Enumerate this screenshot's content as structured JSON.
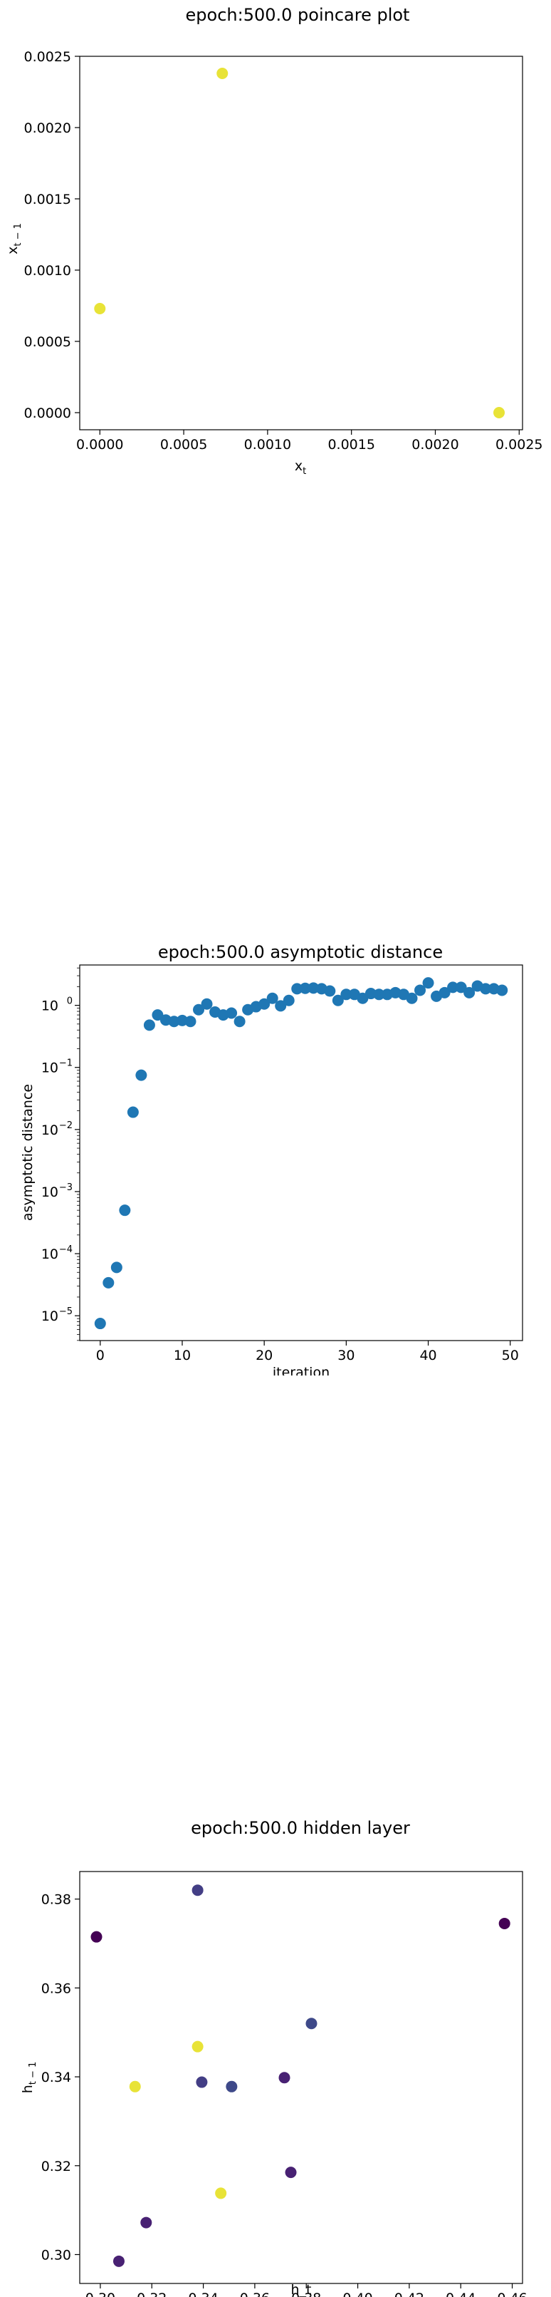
{
  "chart_data": [
    {
      "type": "scatter",
      "title": "epoch:500.0 poincare plot",
      "xlabel_main": "x",
      "xlabel_sub": "t",
      "ylabel_main": "x",
      "ylabel_sub": "t − 1",
      "xlim": [
        -0.00012,
        0.00252
      ],
      "ylim": [
        -0.00012,
        0.0025
      ],
      "xticks": [
        0,
        0.0005,
        0.001,
        0.0015,
        0.002,
        0.0025
      ],
      "xtick_labels": [
        "0.0000",
        "0.0005",
        "0.0010",
        "0.0015",
        "0.0020",
        "0.0025"
      ],
      "yticks": [
        0,
        0.0005,
        0.001,
        0.0015,
        0.002,
        0.0025
      ],
      "ytick_labels": [
        "0.0000",
        "0.0005",
        "0.0010",
        "0.0015",
        "0.0020",
        "0.0025"
      ],
      "marker_color": "#e8e337",
      "points": [
        {
          "x": 0.0,
          "y": 0.00073
        },
        {
          "x": 0.00073,
          "y": 0.00238
        },
        {
          "x": 0.00238,
          "y": 0.0
        }
      ]
    },
    {
      "type": "scatter",
      "title": "epoch:500.0 asymptotic distance",
      "xlabel": "iteration",
      "ylabel": "asymptotic distance",
      "yscale": "log",
      "xlim": [
        -2.5,
        51.5
      ],
      "ylim_log10": [
        -5.4,
        0.65
      ],
      "xticks": [
        0,
        10,
        20,
        30,
        40,
        50
      ],
      "xtick_labels": [
        "0",
        "10",
        "20",
        "30",
        "40",
        "50"
      ],
      "yticks_log10": [
        0,
        -1,
        -2,
        -3,
        -4,
        -5
      ],
      "ytick_mantissa": "10",
      "ytick_exponents": [
        "0",
        "−1",
        "−2",
        "−3",
        "−4",
        "−5"
      ],
      "marker_color": "#1f77b4",
      "x": [
        0,
        1,
        2,
        3,
        4,
        5,
        6,
        7,
        8,
        9,
        10,
        11,
        12,
        13,
        14,
        15,
        16,
        17,
        18,
        19,
        20,
        21,
        22,
        23,
        24,
        25,
        26,
        27,
        28,
        29,
        30,
        31,
        32,
        33,
        34,
        35,
        36,
        37,
        38,
        39,
        40,
        41,
        42,
        43,
        44,
        45,
        46,
        47,
        48,
        49
      ],
      "y": [
        7.5e-06,
        3.4e-05,
        6e-05,
        0.0005,
        0.019,
        0.075,
        0.48,
        0.7,
        0.58,
        0.55,
        0.57,
        0.55,
        0.85,
        1.05,
        0.78,
        0.7,
        0.75,
        0.55,
        0.85,
        0.95,
        1.05,
        1.3,
        0.98,
        1.2,
        1.85,
        1.88,
        1.9,
        1.85,
        1.7,
        1.2,
        1.5,
        1.5,
        1.3,
        1.55,
        1.5,
        1.5,
        1.6,
        1.5,
        1.3,
        1.75,
        2.3,
        1.4,
        1.6,
        1.95,
        1.95,
        1.6,
        2.05,
        1.85,
        1.85,
        1.75
      ]
    },
    {
      "type": "scatter",
      "title": "epoch:500.0 hidden layer",
      "xlabel": "h_t",
      "ylabel_main": "h",
      "ylabel_sub": "t − 1",
      "xlim": [
        0.292,
        0.464
      ],
      "ylim": [
        0.2935,
        0.3862
      ],
      "xticks": [
        0.3,
        0.32,
        0.34,
        0.36,
        0.38,
        0.4,
        0.42,
        0.44,
        0.46
      ],
      "xtick_labels": [
        "0.30",
        "0.32",
        "0.34",
        "0.36",
        "0.38",
        "0.40",
        "0.42",
        "0.44",
        "0.46"
      ],
      "yticks": [
        0.3,
        0.32,
        0.34,
        0.36,
        0.38
      ],
      "ytick_labels": [
        "0.30",
        "0.32",
        "0.34",
        "0.36",
        "0.38"
      ],
      "points": [
        {
          "x": 0.2985,
          "y": 0.3715,
          "color": "#440154"
        },
        {
          "x": 0.3072,
          "y": 0.2985,
          "color": "#482173"
        },
        {
          "x": 0.3135,
          "y": 0.3378,
          "color": "#e8e337"
        },
        {
          "x": 0.3178,
          "y": 0.3072,
          "color": "#482173"
        },
        {
          "x": 0.3378,
          "y": 0.382,
          "color": "#433e85"
        },
        {
          "x": 0.3378,
          "y": 0.3468,
          "color": "#e8e337"
        },
        {
          "x": 0.3394,
          "y": 0.3388,
          "color": "#433e85"
        },
        {
          "x": 0.3468,
          "y": 0.3138,
          "color": "#e8e337"
        },
        {
          "x": 0.351,
          "y": 0.3378,
          "color": "#3e4989"
        },
        {
          "x": 0.3715,
          "y": 0.3398,
          "color": "#482173"
        },
        {
          "x": 0.374,
          "y": 0.3185,
          "color": "#482173"
        },
        {
          "x": 0.382,
          "y": 0.352,
          "color": "#3e4989"
        },
        {
          "x": 0.457,
          "y": 0.3745,
          "color": "#440154"
        }
      ]
    }
  ]
}
